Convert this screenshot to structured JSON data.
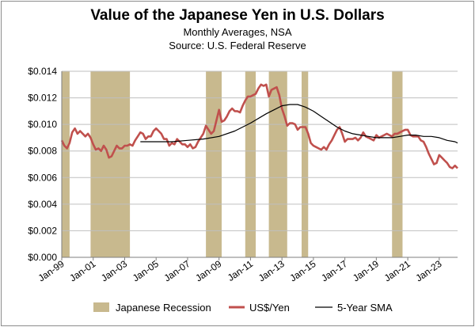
{
  "chart_data": {
    "type": "line",
    "title": "Value of the Japanese Yen in U.S. Dollars",
    "subtitle": "Monthly Averages, NSA",
    "source": "Source:  U.S. Federal Reserve",
    "ylim": [
      0,
      0.014
    ],
    "xlim": [
      "1999-01",
      "2024-03"
    ],
    "y_ticks": [
      "$0.000",
      "$0.002",
      "$0.004",
      "$0.006",
      "$0.008",
      "$0.010",
      "$0.012",
      "$0.014"
    ],
    "x_ticks": [
      "Jan-99",
      "Jan-01",
      "Jan-03",
      "Jan-05",
      "Jan-07",
      "Jan-09",
      "Jan-11",
      "Jan-13",
      "Jan-15",
      "Jan-17",
      "Jan-19",
      "Jan-21",
      "Jan-23"
    ],
    "grid": true,
    "legend": {
      "placement": "bottom",
      "entries": [
        "Japanese Recession",
        "US$/Yen",
        "5-Year SMA"
      ]
    },
    "colors": {
      "recession": "#c8b98e",
      "yen": "#c0504d",
      "sma": "#000000"
    },
    "recessions": [
      {
        "start": "1999-01",
        "end": "1999-07"
      },
      {
        "start": "2000-11",
        "end": "2003-05"
      },
      {
        "start": "2008-03",
        "end": "2009-03"
      },
      {
        "start": "2010-09",
        "end": "2011-05"
      },
      {
        "start": "2012-03",
        "end": "2013-05"
      },
      {
        "start": "2014-04",
        "end": "2014-09"
      },
      {
        "start": "2020-01",
        "end": "2020-09"
      }
    ],
    "series": [
      {
        "name": "US$/Yen",
        "points": [
          [
            "1999-01",
            0.0088
          ],
          [
            "1999-03",
            0.0084
          ],
          [
            "1999-05",
            0.0082
          ],
          [
            "1999-07",
            0.0086
          ],
          [
            "1999-09",
            0.0094
          ],
          [
            "1999-11",
            0.0097
          ],
          [
            "2000-01",
            0.0093
          ],
          [
            "2000-03",
            0.0095
          ],
          [
            "2000-05",
            0.0093
          ],
          [
            "2000-07",
            0.0091
          ],
          [
            "2000-09",
            0.0093
          ],
          [
            "2000-11",
            0.009
          ],
          [
            "2001-01",
            0.0085
          ],
          [
            "2001-03",
            0.0081
          ],
          [
            "2001-05",
            0.0082
          ],
          [
            "2001-07",
            0.008
          ],
          [
            "2001-09",
            0.0084
          ],
          [
            "2001-11",
            0.0081
          ],
          [
            "2002-01",
            0.0075
          ],
          [
            "2002-03",
            0.0076
          ],
          [
            "2002-05",
            0.008
          ],
          [
            "2002-07",
            0.0084
          ],
          [
            "2002-09",
            0.0082
          ],
          [
            "2002-11",
            0.0082
          ],
          [
            "2003-01",
            0.0084
          ],
          [
            "2003-03",
            0.0084
          ],
          [
            "2003-05",
            0.0085
          ],
          [
            "2003-07",
            0.0084
          ],
          [
            "2003-09",
            0.0088
          ],
          [
            "2003-11",
            0.0091
          ],
          [
            "2004-01",
            0.0094
          ],
          [
            "2004-03",
            0.0093
          ],
          [
            "2004-05",
            0.0089
          ],
          [
            "2004-07",
            0.0091
          ],
          [
            "2004-09",
            0.0091
          ],
          [
            "2004-11",
            0.0095
          ],
          [
            "2005-01",
            0.0097
          ],
          [
            "2005-03",
            0.0095
          ],
          [
            "2005-05",
            0.0093
          ],
          [
            "2005-07",
            0.0089
          ],
          [
            "2005-09",
            0.0089
          ],
          [
            "2005-11",
            0.0084
          ],
          [
            "2006-01",
            0.0086
          ],
          [
            "2006-03",
            0.0085
          ],
          [
            "2006-05",
            0.0089
          ],
          [
            "2006-07",
            0.0087
          ],
          [
            "2006-09",
            0.0085
          ],
          [
            "2006-11",
            0.0085
          ],
          [
            "2007-01",
            0.0083
          ],
          [
            "2007-03",
            0.0085
          ],
          [
            "2007-05",
            0.0082
          ],
          [
            "2007-07",
            0.0083
          ],
          [
            "2007-09",
            0.0087
          ],
          [
            "2007-11",
            0.009
          ],
          [
            "2008-01",
            0.0093
          ],
          [
            "2008-03",
            0.0099
          ],
          [
            "2008-05",
            0.0096
          ],
          [
            "2008-07",
            0.0093
          ],
          [
            "2008-09",
            0.0095
          ],
          [
            "2008-11",
            0.0103
          ],
          [
            "2009-01",
            0.0111
          ],
          [
            "2009-03",
            0.0102
          ],
          [
            "2009-05",
            0.0103
          ],
          [
            "2009-07",
            0.0106
          ],
          [
            "2009-09",
            0.011
          ],
          [
            "2009-11",
            0.0112
          ],
          [
            "2010-01",
            0.011
          ],
          [
            "2010-03",
            0.011
          ],
          [
            "2010-05",
            0.0109
          ],
          [
            "2010-07",
            0.0114
          ],
          [
            "2010-09",
            0.0118
          ],
          [
            "2010-11",
            0.0121
          ],
          [
            "2011-01",
            0.0121
          ],
          [
            "2011-03",
            0.0122
          ],
          [
            "2011-05",
            0.0123
          ],
          [
            "2011-07",
            0.0127
          ],
          [
            "2011-09",
            0.013
          ],
          [
            "2011-11",
            0.0129
          ],
          [
            "2012-01",
            0.013
          ],
          [
            "2012-03",
            0.0121
          ],
          [
            "2012-05",
            0.0126
          ],
          [
            "2012-07",
            0.0127
          ],
          [
            "2012-09",
            0.0128
          ],
          [
            "2012-11",
            0.0122
          ],
          [
            "2013-01",
            0.0112
          ],
          [
            "2013-03",
            0.0106
          ],
          [
            "2013-05",
            0.0099
          ],
          [
            "2013-07",
            0.0101
          ],
          [
            "2013-09",
            0.0101
          ],
          [
            "2013-11",
            0.01
          ],
          [
            "2014-01",
            0.0096
          ],
          [
            "2014-03",
            0.0098
          ],
          [
            "2014-05",
            0.0098
          ],
          [
            "2014-07",
            0.0098
          ],
          [
            "2014-09",
            0.0093
          ],
          [
            "2014-11",
            0.0086
          ],
          [
            "2015-01",
            0.0084
          ],
          [
            "2015-03",
            0.0083
          ],
          [
            "2015-05",
            0.0082
          ],
          [
            "2015-07",
            0.0081
          ],
          [
            "2015-09",
            0.0083
          ],
          [
            "2015-11",
            0.0081
          ],
          [
            "2016-01",
            0.0085
          ],
          [
            "2016-03",
            0.0088
          ],
          [
            "2016-05",
            0.0092
          ],
          [
            "2016-07",
            0.0096
          ],
          [
            "2016-09",
            0.0098
          ],
          [
            "2016-11",
            0.0093
          ],
          [
            "2017-01",
            0.0087
          ],
          [
            "2017-03",
            0.0089
          ],
          [
            "2017-05",
            0.0089
          ],
          [
            "2017-07",
            0.0089
          ],
          [
            "2017-09",
            0.009
          ],
          [
            "2017-11",
            0.0088
          ],
          [
            "2018-01",
            0.009
          ],
          [
            "2018-03",
            0.0094
          ],
          [
            "2018-05",
            0.0091
          ],
          [
            "2018-07",
            0.009
          ],
          [
            "2018-09",
            0.0089
          ],
          [
            "2018-11",
            0.0088
          ],
          [
            "2019-01",
            0.0092
          ],
          [
            "2019-03",
            0.009
          ],
          [
            "2019-05",
            0.0091
          ],
          [
            "2019-07",
            0.0092
          ],
          [
            "2019-09",
            0.0093
          ],
          [
            "2019-11",
            0.0092
          ],
          [
            "2020-01",
            0.0091
          ],
          [
            "2020-03",
            0.0093
          ],
          [
            "2020-05",
            0.0093
          ],
          [
            "2020-07",
            0.0094
          ],
          [
            "2020-09",
            0.0095
          ],
          [
            "2020-11",
            0.0096
          ],
          [
            "2021-01",
            0.0096
          ],
          [
            "2021-03",
            0.0092
          ],
          [
            "2021-05",
            0.0091
          ],
          [
            "2021-07",
            0.0091
          ],
          [
            "2021-09",
            0.0091
          ],
          [
            "2021-11",
            0.0088
          ],
          [
            "2022-01",
            0.0087
          ],
          [
            "2022-03",
            0.0083
          ],
          [
            "2022-05",
            0.0078
          ],
          [
            "2022-07",
            0.0074
          ],
          [
            "2022-09",
            0.007
          ],
          [
            "2022-11",
            0.0071
          ],
          [
            "2023-01",
            0.0077
          ],
          [
            "2023-03",
            0.0075
          ],
          [
            "2023-05",
            0.0073
          ],
          [
            "2023-07",
            0.0071
          ],
          [
            "2023-09",
            0.0068
          ],
          [
            "2023-11",
            0.0067
          ],
          [
            "2024-01",
            0.0069
          ],
          [
            "2024-03",
            0.0067
          ]
        ]
      },
      {
        "name": "5-Year SMA",
        "points": [
          [
            "2004-01",
            0.0087
          ],
          [
            "2005-01",
            0.0087
          ],
          [
            "2006-01",
            0.0087
          ],
          [
            "2007-01",
            0.0088
          ],
          [
            "2008-01",
            0.0089
          ],
          [
            "2009-01",
            0.0091
          ],
          [
            "2010-01",
            0.0095
          ],
          [
            "2011-01",
            0.0101
          ],
          [
            "2012-01",
            0.0108
          ],
          [
            "2012-07",
            0.0111
          ],
          [
            "2013-01",
            0.0114
          ],
          [
            "2013-07",
            0.0115
          ],
          [
            "2014-01",
            0.0115
          ],
          [
            "2014-07",
            0.0113
          ],
          [
            "2015-01",
            0.011
          ],
          [
            "2015-07",
            0.0106
          ],
          [
            "2016-01",
            0.0102
          ],
          [
            "2016-07",
            0.0098
          ],
          [
            "2017-01",
            0.0095
          ],
          [
            "2017-07",
            0.0093
          ],
          [
            "2018-01",
            0.0092
          ],
          [
            "2018-07",
            0.0091
          ],
          [
            "2019-01",
            0.009
          ],
          [
            "2019-07",
            0.009
          ],
          [
            "2020-01",
            0.009
          ],
          [
            "2020-07",
            0.0091
          ],
          [
            "2021-01",
            0.0092
          ],
          [
            "2021-07",
            0.0092
          ],
          [
            "2022-01",
            0.0091
          ],
          [
            "2022-07",
            0.0091
          ],
          [
            "2023-01",
            0.009
          ],
          [
            "2023-07",
            0.0088
          ],
          [
            "2024-01",
            0.0087
          ],
          [
            "2024-03",
            0.0086
          ]
        ]
      }
    ]
  }
}
